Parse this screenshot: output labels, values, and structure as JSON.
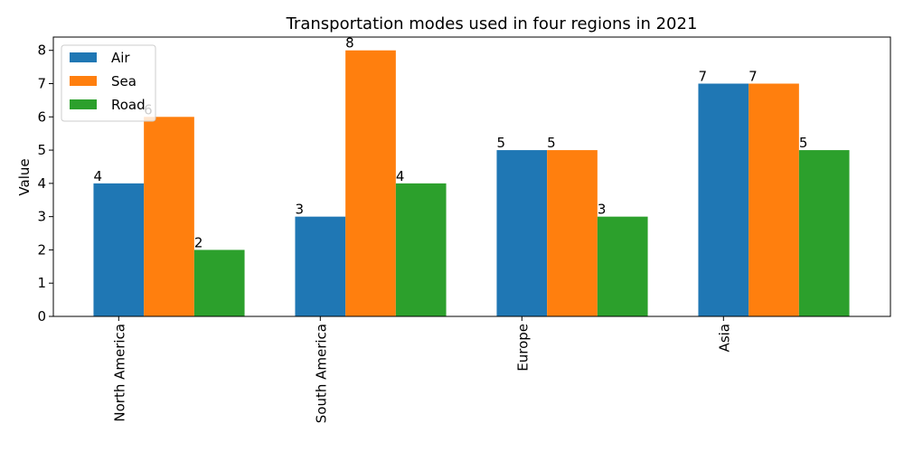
{
  "chart_data": {
    "type": "bar",
    "title": "Transportation modes used in four regions in 2021",
    "xlabel": "",
    "ylabel": "Value",
    "categories": [
      "North America",
      "South America",
      "Europe",
      "Asia"
    ],
    "series": [
      {
        "name": "Air",
        "values": [
          4,
          3,
          5,
          7
        ],
        "color": "#1f77b4"
      },
      {
        "name": "Sea",
        "values": [
          6,
          8,
          5,
          7
        ],
        "color": "#ff7f0e"
      },
      {
        "name": "Road",
        "values": [
          2,
          4,
          3,
          5
        ],
        "color": "#2ca02c"
      }
    ],
    "ylim": [
      0,
      8.4
    ],
    "yticks": [
      0,
      1,
      2,
      3,
      4,
      5,
      6,
      7,
      8
    ],
    "grid": false,
    "legend_position": "top-left",
    "data_labels": true,
    "xtick_rotation": "vertical"
  }
}
